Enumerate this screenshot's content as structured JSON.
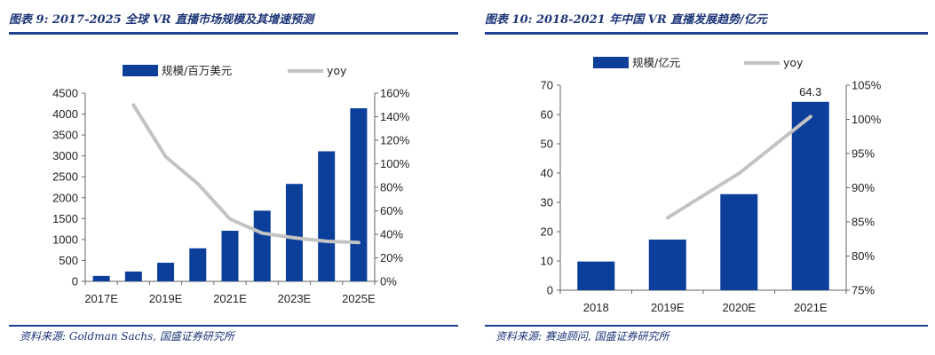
{
  "figures": [
    {
      "title": "图表 9:  2017-2025 全球 VR 直播市场规模及其增速预测",
      "source": "资料来源:  Goldman Sachs, 国盛证券研究所",
      "legend": {
        "bar": "规模/百万美元",
        "line": "yoy"
      },
      "colors": {
        "bar": "#0b3f9a",
        "line": "#c3c3c3"
      },
      "chart_data": {
        "type": "bar",
        "categories": [
          "2017E",
          "2018E",
          "2019E",
          "2020E",
          "2021E",
          "2022E",
          "2023E",
          "2024E",
          "2025E"
        ],
        "x_tick_labels": [
          "2017E",
          "",
          "2019E",
          "",
          "2021E",
          "",
          "2023E",
          "",
          "2025E"
        ],
        "series": [
          {
            "name": "规模/百万美元",
            "type": "bar",
            "axis": "left",
            "values": [
              130,
              235,
              445,
              790,
              1210,
              1690,
              2330,
              3110,
              4140
            ]
          },
          {
            "name": "yoy",
            "type": "line",
            "axis": "right",
            "values": [
              null,
              1.5,
              1.06,
              0.83,
              0.53,
              0.41,
              0.37,
              0.34,
              0.33
            ]
          }
        ],
        "y_left": {
          "min": 0,
          "max": 4500,
          "ticks": [
            "0",
            "500",
            "1000",
            "1500",
            "2000",
            "2500",
            "3000",
            "3500",
            "4000",
            "4500"
          ]
        },
        "y_right": {
          "min": 0,
          "max": 1.6,
          "ticks": [
            "0%",
            "20%",
            "40%",
            "60%",
            "80%",
            "100%",
            "120%",
            "140%",
            "160%"
          ]
        },
        "data_labels": [
          "",
          "",
          "",
          "",
          "",
          "",
          "",
          "",
          ""
        ],
        "legend_position": "top"
      }
    },
    {
      "title": "图表 10:  2018-2021 年中国 VR 直播发展趋势/亿元",
      "source": "资料来源:  赛迪顾问, 国盛证券研究所",
      "legend": {
        "bar": "规模/亿元",
        "line": "yoy"
      },
      "colors": {
        "bar": "#0b3f9a",
        "line": "#c3c3c3"
      },
      "chart_data": {
        "type": "bar",
        "categories": [
          "2018",
          "2019E",
          "2020E",
          "2021E"
        ],
        "x_tick_labels": [
          "2018",
          "2019E",
          "2020E",
          "2021E"
        ],
        "series": [
          {
            "name": "规模/亿元",
            "type": "bar",
            "axis": "left",
            "values": [
              9.8,
              17.3,
              32.8,
              64.3
            ]
          },
          {
            "name": "yoy",
            "type": "line",
            "axis": "right",
            "values": [
              null,
              0.856,
              0.921,
              1.004
            ]
          }
        ],
        "y_left": {
          "min": 0,
          "max": 70,
          "ticks": [
            "0",
            "10",
            "20",
            "30",
            "40",
            "50",
            "60",
            "70"
          ]
        },
        "y_right": {
          "min": 0.75,
          "max": 1.05,
          "ticks": [
            "75%",
            "80%",
            "85%",
            "90%",
            "95%",
            "100%",
            "105%"
          ]
        },
        "data_labels": [
          "",
          "",
          "",
          "64.3"
        ],
        "legend_position": "top"
      }
    }
  ]
}
